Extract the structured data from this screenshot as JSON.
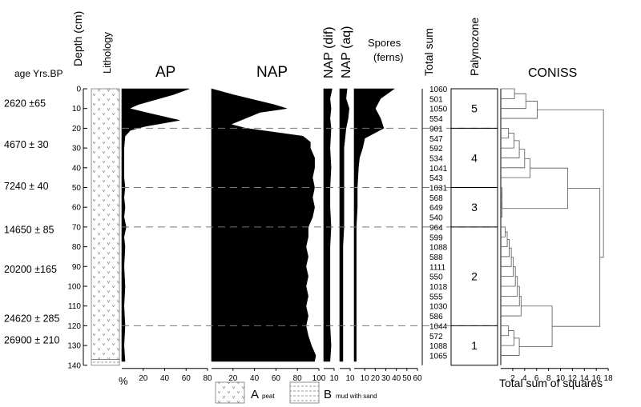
{
  "chart_data": {
    "type": "area",
    "subtype": "pollen-diagram",
    "headers": {
      "age": "age Yrs.BP",
      "depth": "Depth (cm)",
      "lithology": "Lithology",
      "ap": "AP",
      "nap": "NAP",
      "nap_dif": "NAP (dif)",
      "nap_aq": "NAP (aq)",
      "spores_1": "Spores",
      "spores_2": "(ferns)",
      "total_sum": "Total sum",
      "palynozone": "Palynozone",
      "coniss": "CONISS"
    },
    "percent_unit": "%",
    "coniss_xlabel": "Total sum of squares",
    "depth_ticks": [
      0,
      10,
      20,
      30,
      40,
      50,
      60,
      70,
      80,
      90,
      100,
      110,
      120,
      130,
      140
    ],
    "ap_ticks": [
      20,
      40,
      60,
      80
    ],
    "nap_ticks": [
      20,
      40,
      60,
      80,
      100
    ],
    "nap_dif_ticks": [
      10
    ],
    "nap_aq_ticks": [
      10
    ],
    "spores_ticks": [
      10,
      20,
      30,
      40,
      50,
      60
    ],
    "coniss_ticks": [
      2,
      4,
      6,
      8,
      10,
      12,
      14,
      16,
      18
    ],
    "ages": [
      {
        "label": "2620 ±65",
        "depth": 7
      },
      {
        "label": "4670 ± 30",
        "depth": 28
      },
      {
        "label": "7240 ± 40",
        "depth": 49
      },
      {
        "label": "14650 ± 85",
        "depth": 71
      },
      {
        "label": "20200 ±165",
        "depth": 91
      },
      {
        "label": "24620 ± 285",
        "depth": 116
      },
      {
        "label": "26900 ± 210",
        "depth": 127
      }
    ],
    "samples": {
      "depth": [
        0,
        5,
        10,
        15,
        20,
        25,
        30,
        35,
        40,
        45,
        50,
        55,
        60,
        65,
        70,
        75,
        80,
        85,
        90,
        95,
        100,
        105,
        110,
        115,
        120,
        125,
        130,
        135
      ],
      "total_sum": [
        1060,
        501,
        1050,
        554,
        901,
        547,
        592,
        534,
        1041,
        543,
        1031,
        568,
        649,
        540,
        964,
        599,
        1088,
        588,
        1111,
        550,
        1018,
        555,
        1030,
        586,
        1044,
        572,
        1088,
        1065
      ]
    },
    "zone_boundaries": [
      20,
      50,
      70,
      120
    ],
    "zones": [
      {
        "label": "5",
        "from": 0,
        "to": 20
      },
      {
        "label": "4",
        "from": 20,
        "to": 50
      },
      {
        "label": "3",
        "from": 50,
        "to": 70
      },
      {
        "label": "2",
        "from": 70,
        "to": 120
      },
      {
        "label": "1",
        "from": 120,
        "to": 140
      }
    ],
    "series": [
      {
        "key": "ap",
        "axis_max": 80,
        "profile": [
          [
            0,
            63
          ],
          [
            3,
            48
          ],
          [
            8,
            15
          ],
          [
            10,
            7
          ],
          [
            12,
            22
          ],
          [
            16,
            54
          ],
          [
            19,
            22
          ],
          [
            21,
            8
          ],
          [
            24,
            3
          ],
          [
            30,
            2
          ],
          [
            45,
            2
          ],
          [
            50,
            3
          ],
          [
            55,
            2
          ],
          [
            60,
            3
          ],
          [
            65,
            2
          ],
          [
            70,
            4
          ],
          [
            75,
            2
          ],
          [
            80,
            3
          ],
          [
            90,
            2
          ],
          [
            100,
            3
          ],
          [
            110,
            2
          ],
          [
            120,
            3
          ],
          [
            130,
            2
          ],
          [
            138,
            3
          ]
        ]
      },
      {
        "key": "nap",
        "axis_max": 100,
        "profile": [
          [
            0,
            0
          ],
          [
            3,
            20
          ],
          [
            8,
            58
          ],
          [
            10,
            70
          ],
          [
            12,
            45
          ],
          [
            18,
            18
          ],
          [
            20,
            32
          ],
          [
            24,
            85
          ],
          [
            27,
            92
          ],
          [
            30,
            92
          ],
          [
            35,
            96
          ],
          [
            40,
            96
          ],
          [
            45,
            94
          ],
          [
            50,
            96
          ],
          [
            55,
            94
          ],
          [
            60,
            96
          ],
          [
            65,
            94
          ],
          [
            70,
            90
          ],
          [
            75,
            90
          ],
          [
            80,
            88
          ],
          [
            85,
            90
          ],
          [
            90,
            88
          ],
          [
            95,
            90
          ],
          [
            100,
            88
          ],
          [
            105,
            90
          ],
          [
            110,
            88
          ],
          [
            115,
            90
          ],
          [
            120,
            88
          ],
          [
            125,
            90
          ],
          [
            130,
            93
          ],
          [
            135,
            97
          ],
          [
            138,
            96
          ]
        ]
      },
      {
        "key": "nap_dif",
        "axis_max": 10,
        "profile": [
          [
            0,
            8
          ],
          [
            5,
            6
          ],
          [
            10,
            7
          ],
          [
            15,
            6
          ],
          [
            20,
            7
          ],
          [
            30,
            6
          ],
          [
            40,
            7
          ],
          [
            50,
            6
          ],
          [
            60,
            6
          ],
          [
            70,
            7
          ],
          [
            80,
            6
          ],
          [
            90,
            6
          ],
          [
            100,
            6
          ],
          [
            110,
            6
          ],
          [
            120,
            6
          ],
          [
            130,
            7
          ],
          [
            138,
            6
          ]
        ]
      },
      {
        "key": "nap_aq",
        "axis_max": 10,
        "profile": [
          [
            0,
            7
          ],
          [
            5,
            6
          ],
          [
            10,
            9
          ],
          [
            15,
            8
          ],
          [
            20,
            6
          ],
          [
            30,
            4
          ],
          [
            40,
            4
          ],
          [
            50,
            4
          ],
          [
            60,
            4
          ],
          [
            70,
            4
          ],
          [
            80,
            3
          ],
          [
            90,
            3
          ],
          [
            100,
            3
          ],
          [
            110,
            3
          ],
          [
            120,
            3
          ],
          [
            130,
            3
          ],
          [
            138,
            3
          ]
        ]
      },
      {
        "key": "spores",
        "axis_max": 60,
        "profile": [
          [
            0,
            38
          ],
          [
            5,
            25
          ],
          [
            10,
            20
          ],
          [
            15,
            25
          ],
          [
            20,
            28
          ],
          [
            25,
            10
          ],
          [
            30,
            8
          ],
          [
            35,
            5
          ],
          [
            40,
            4
          ],
          [
            50,
            3
          ],
          [
            60,
            3
          ],
          [
            70,
            2
          ],
          [
            80,
            2
          ],
          [
            90,
            2
          ],
          [
            100,
            2
          ],
          [
            110,
            2
          ],
          [
            120,
            2
          ],
          [
            130,
            2
          ],
          [
            138,
            2
          ]
        ]
      }
    ],
    "legend": [
      {
        "letter": "A",
        "label": "peat"
      },
      {
        "letter": "B",
        "label": "mud with sand"
      }
    ]
  }
}
